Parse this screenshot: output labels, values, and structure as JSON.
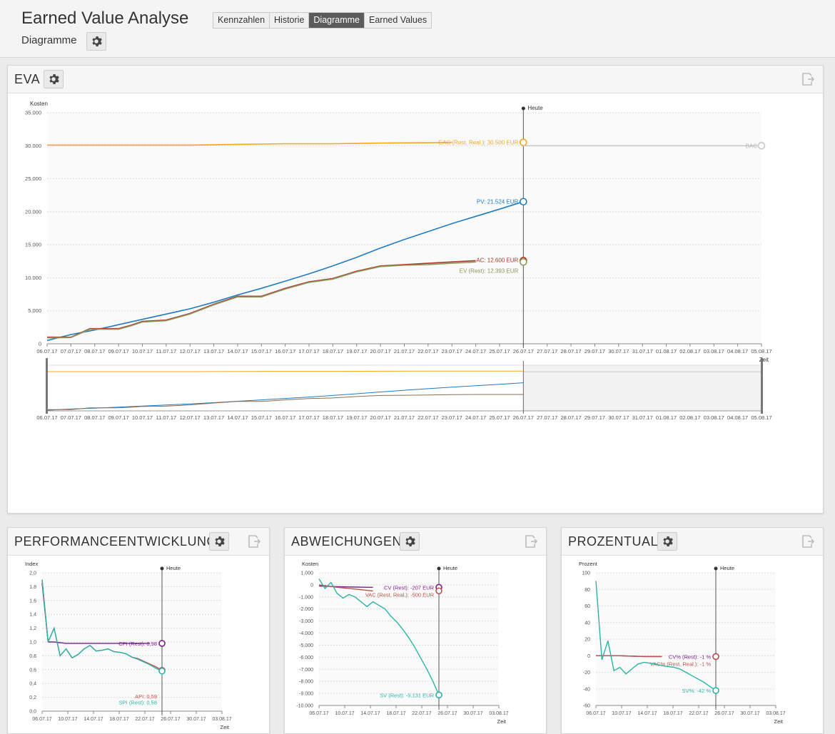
{
  "header": {
    "title": "Earned Value Analyse",
    "subtitle": "Diagramme",
    "tabs": [
      {
        "label": "Kennzahlen",
        "active": false
      },
      {
        "label": "Historie",
        "active": false
      },
      {
        "label": "Diagramme",
        "active": true
      },
      {
        "label": "Earned Values",
        "active": false
      }
    ]
  },
  "panels": {
    "eva": {
      "title": "EVA"
    },
    "performance": {
      "title": "PERFORMANCEENTWICKLUNG"
    },
    "deviations": {
      "title": "ABWEICHUNGEN"
    },
    "percent": {
      "title": "PROZENTUAL"
    }
  },
  "colors": {
    "eac": "#f5a623",
    "pv": "#1f7cc1",
    "ac": "#b0342b",
    "ev": "#8a9a5b",
    "bac": "#c8c8c8",
    "cpi": "#7b1e8c",
    "api": "#c0504d",
    "spi": "#2bb3a8",
    "navigator_line": "#8c6d52"
  },
  "chart_data": [
    {
      "type": "line",
      "id": "eva",
      "ylabel": "Kosten",
      "xlabel": "Zeit",
      "ylim": [
        0,
        35000
      ],
      "yticks": [
        "0",
        "5.000",
        "10.000",
        "15.000",
        "20.000",
        "25.000",
        "30.000",
        "35.000"
      ],
      "xticks": [
        "06.07.17",
        "07.07.17",
        "08.07.17",
        "09.07.17",
        "10.07.17",
        "11.07.17",
        "12.07.17",
        "13.07.17",
        "14.07.17",
        "15.07.17",
        "16.07.17",
        "17.07.17",
        "18.07.17",
        "19.07.17",
        "20.07.17",
        "21.07.17",
        "22.07.17",
        "23.07.17",
        "24.07.17",
        "25.07.17",
        "26.07.17",
        "27.07.17",
        "28.07.17",
        "29.07.17",
        "30.07.17",
        "31.07.17",
        "01.08.17",
        "02.08.17",
        "03.08.17",
        "04.08.17",
        "05.08.17"
      ],
      "today_index": 20,
      "today_label": "Heute",
      "grid": true,
      "series": [
        {
          "key": "eac",
          "x": [
            0,
            4,
            6,
            8,
            10,
            12,
            14,
            16,
            17
          ],
          "values": [
            30100,
            30100,
            30100,
            30200,
            30300,
            30300,
            30400,
            30450,
            30500
          ],
          "label": "EAC (Rest, Real.): 30.500 EUR",
          "marker_x": 20,
          "marker_value": 30500
        },
        {
          "key": "pv",
          "x": [
            0,
            1,
            2,
            3,
            4,
            5,
            6,
            7,
            8,
            9,
            10,
            11,
            12,
            13,
            14,
            15,
            16,
            17,
            18,
            19,
            20
          ],
          "values": [
            500,
            1400,
            2100,
            2900,
            3700,
            4500,
            5300,
            6300,
            7400,
            8400,
            9500,
            10600,
            11800,
            13100,
            14500,
            15800,
            17000,
            18200,
            19300,
            20400,
            21524
          ],
          "label": "PV: 21.524 EUR",
          "marker_x": 20,
          "marker_value": 21524
        },
        {
          "key": "ac",
          "x": [
            0,
            1,
            1.8,
            3,
            3.5,
            4,
            5,
            6,
            7,
            8,
            9,
            10,
            11,
            12,
            13,
            14,
            15,
            16,
            17,
            18
          ],
          "values": [
            1000,
            1000,
            2300,
            2300,
            2800,
            3400,
            3600,
            4600,
            6000,
            7200,
            7200,
            8400,
            9400,
            9900,
            11000,
            11800,
            12000,
            12200,
            12400,
            12600
          ],
          "label": "AC: 12.600 EUR",
          "marker_x": 20,
          "marker_value": 12600
        },
        {
          "key": "ev",
          "x": [
            0,
            1,
            1.8,
            3,
            3.5,
            4,
            5,
            6,
            7,
            8,
            9,
            10,
            11,
            12,
            13,
            14,
            15,
            16,
            17,
            18
          ],
          "values": [
            900,
            950,
            2200,
            2200,
            2700,
            3300,
            3500,
            4500,
            5900,
            7100,
            7100,
            8300,
            9300,
            9800,
            10900,
            11700,
            11900,
            12000,
            12200,
            12393
          ],
          "label": "EV (Rest): 12.393 EUR",
          "marker_x": 20,
          "marker_value": 12393
        },
        {
          "key": "bac",
          "x": [
            20,
            30
          ],
          "values": [
            30000,
            30000
          ],
          "label": "BAC",
          "marker_x": 30,
          "marker_value": 30000
        }
      ]
    },
    {
      "type": "line",
      "id": "performance",
      "ylabel": "Index",
      "xlabel": "Zeit",
      "ylim": [
        0,
        2.0
      ],
      "yticks": [
        "0,0",
        "0,2",
        "0,4",
        "0,6",
        "0,8",
        "1,0",
        "1,2",
        "1,4",
        "1,6",
        "1,8",
        "2,0"
      ],
      "xticks": [
        "06.07.17",
        "10.07.17",
        "14.07.17",
        "18.07.17",
        "22.07.17",
        "26.07.17",
        "30.07.17",
        "03.08.17"
      ],
      "xrange": [
        0,
        30
      ],
      "today_index": 20,
      "today_label": "Heute",
      "grid": true,
      "series": [
        {
          "key": "cpi",
          "x": [
            0,
            1,
            2,
            4,
            6,
            8,
            10,
            12,
            14,
            16,
            18
          ],
          "values": [
            1.85,
            1.0,
            1.0,
            0.98,
            0.98,
            0.98,
            0.98,
            0.98,
            0.98,
            0.98,
            0.98
          ],
          "label": "CPI (Rest): 0,98",
          "marker_x": 20,
          "marker_value": 0.98
        },
        {
          "key": "api",
          "x": [
            0,
            1,
            2,
            3,
            4,
            5,
            6,
            7,
            8,
            9,
            10,
            11,
            12,
            13,
            14,
            15,
            16,
            17,
            18,
            19,
            20
          ],
          "values": [
            1.9,
            1.0,
            1.2,
            0.8,
            0.9,
            0.77,
            0.82,
            0.9,
            0.95,
            0.87,
            0.88,
            0.9,
            0.86,
            0.85,
            0.83,
            0.78,
            0.76,
            0.72,
            0.68,
            0.64,
            0.59
          ],
          "label": "API: 0,59",
          "marker_x": 20,
          "marker_value": 0.59
        },
        {
          "key": "spi",
          "x": [
            0,
            1,
            2,
            3,
            4,
            5,
            6,
            7,
            8,
            9,
            10,
            11,
            12,
            13,
            14,
            15,
            16,
            17,
            18,
            19,
            20
          ],
          "values": [
            1.9,
            1.0,
            1.2,
            0.8,
            0.9,
            0.77,
            0.82,
            0.9,
            0.95,
            0.87,
            0.88,
            0.9,
            0.86,
            0.85,
            0.83,
            0.78,
            0.75,
            0.71,
            0.67,
            0.62,
            0.58
          ],
          "label": "SPI (Rest): 0,58",
          "marker_x": 20,
          "marker_value": 0.58
        }
      ]
    },
    {
      "type": "line",
      "id": "deviations",
      "ylabel": "Kosten",
      "xlabel": "Zeit",
      "ylim": [
        -10000,
        1000
      ],
      "yticks": [
        "-10.000",
        "-9.000",
        "-8.000",
        "-7.000",
        "-6.000",
        "-5.000",
        "-4.000",
        "-3.000",
        "-2.000",
        "-1.000",
        "0",
        "1.000"
      ],
      "xticks": [
        "06.07.17",
        "10.07.17",
        "14.07.17",
        "18.07.17",
        "22.07.17",
        "26.07.17",
        "30.07.17",
        "03.08.17"
      ],
      "xrange": [
        0,
        30
      ],
      "today_index": 20,
      "today_label": "Heute",
      "grid": true,
      "series": [
        {
          "key": "cpi",
          "x": [
            0,
            3,
            6,
            9
          ],
          "values": [
            -100,
            -150,
            -180,
            -207
          ],
          "label": "CV (Rest): -207 EUR",
          "marker_x": 20,
          "marker_value": -207
        },
        {
          "key": "api",
          "x": [
            0,
            3,
            6,
            9
          ],
          "values": [
            0,
            -200,
            -350,
            -500
          ],
          "label": "VAC (Rest, Real.): -500 EUR",
          "marker_x": 20,
          "marker_value": -500
        },
        {
          "key": "spi",
          "x": [
            0,
            1,
            2,
            3,
            4,
            5,
            6,
            7,
            8,
            9,
            10,
            11,
            12,
            13,
            14,
            15,
            16,
            17,
            18,
            19,
            20
          ],
          "values": [
            500,
            -300,
            200,
            -700,
            -1100,
            -800,
            -1000,
            -1400,
            -1800,
            -1400,
            -1700,
            -2000,
            -2600,
            -3100,
            -3700,
            -4400,
            -5200,
            -6100,
            -7000,
            -8000,
            -9131
          ],
          "label": "SV (Rest): -9.131 EUR",
          "marker_x": 20,
          "marker_value": -9131
        }
      ]
    },
    {
      "type": "line",
      "id": "percent",
      "ylabel": "Prozent",
      "xlabel": "Zeit",
      "ylim": [
        -60,
        100
      ],
      "yticks": [
        "-60",
        "-40",
        "-20",
        "0",
        "20",
        "40",
        "60",
        "80",
        "100"
      ],
      "xticks": [
        "06.07.17",
        "10.07.17",
        "14.07.17",
        "18.07.17",
        "22.07.17",
        "26.07.17",
        "30.07.17",
        "03.08.17"
      ],
      "xrange": [
        0,
        30
      ],
      "today_index": 20,
      "today_label": "Heute",
      "grid": true,
      "series": [
        {
          "key": "cpi",
          "x": [
            0,
            4,
            8,
            11
          ],
          "values": [
            0,
            0,
            -1,
            -1
          ],
          "label": "CV% (Rest): -1 %",
          "marker_x": 20,
          "marker_value": -1
        },
        {
          "key": "api",
          "x": [
            0,
            4,
            8,
            11
          ],
          "values": [
            0,
            0,
            -1,
            -1
          ],
          "label": "VAC% (Rest, Real.): -1 %",
          "marker_x": 20,
          "marker_value": -1
        },
        {
          "key": "spi",
          "x": [
            0,
            1,
            2,
            3,
            4,
            5,
            6,
            7,
            8,
            9,
            10,
            11,
            12,
            13,
            14,
            15,
            16,
            17,
            18,
            19,
            20
          ],
          "values": [
            90,
            -5,
            18,
            -18,
            -14,
            -22,
            -16,
            -10,
            -8,
            -9,
            -10,
            -12,
            -13,
            -14,
            -16,
            -20,
            -24,
            -28,
            -32,
            -37,
            -42
          ],
          "label": "SV%: -42 %",
          "marker_x": 20,
          "marker_value": -42
        }
      ]
    }
  ]
}
